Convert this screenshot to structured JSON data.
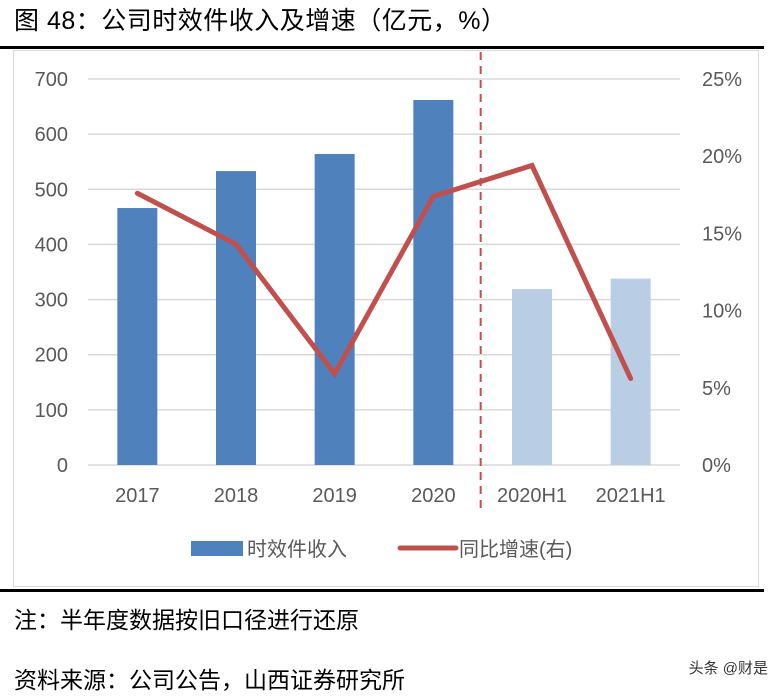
{
  "figure": {
    "title": "图 48：公司时效件收入及增速（亿元，%）",
    "note": "注：半年度数据按旧口径进行还原",
    "source": "资料来源：公司公告，山西证券研究所",
    "watermark": "头条 @财是"
  },
  "colors": {
    "bar_annual": "#4f81bd",
    "bar_half": "#b9cde5",
    "line": "#c0504d",
    "divider": "#c0504d",
    "grid": "#d9d9d9",
    "axis_text": "#595959"
  },
  "chart_data": {
    "type": "bar+line",
    "title": "图 48：公司时效件收入及增速（亿元，%）",
    "categories": [
      "2017",
      "2018",
      "2019",
      "2020",
      "2020H1",
      "2021H1"
    ],
    "series": [
      {
        "name": "时效件收入",
        "type": "bar",
        "axis": "left",
        "values": [
          466,
          533,
          564,
          662,
          319,
          338
        ]
      },
      {
        "name": "同比增速(右)",
        "type": "line",
        "axis": "right",
        "unit": "%",
        "values": [
          17.6,
          14.3,
          5.9,
          17.4,
          19.4,
          5.6
        ]
      }
    ],
    "left_axis": {
      "min": 0,
      "max": 700,
      "step": 100,
      "ticks": [
        "0",
        "100",
        "200",
        "300",
        "400",
        "500",
        "600",
        "700"
      ]
    },
    "right_axis": {
      "min": 0,
      "max": 25,
      "step": 5,
      "ticks": [
        "0%",
        "5%",
        "10%",
        "15%",
        "20%",
        "25%"
      ]
    },
    "grid": true,
    "divider_between": [
      "2020",
      "2020H1"
    ],
    "legend": {
      "position": "bottom",
      "entries": [
        "时效件收入",
        "同比增速(右)"
      ]
    },
    "xlabel": "",
    "ylabel": ""
  }
}
